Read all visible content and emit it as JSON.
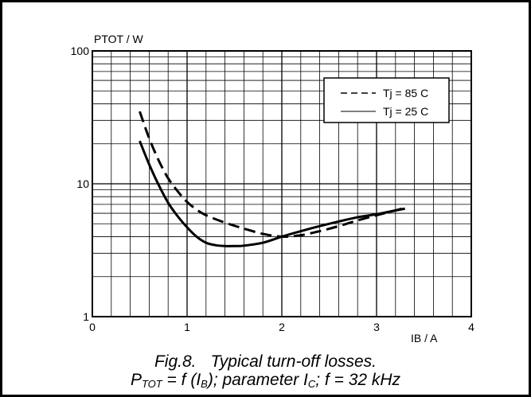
{
  "chart_data": {
    "type": "line",
    "xlabel": "IB / A",
    "ylabel": "PTOT / W",
    "xlim": [
      0,
      4
    ],
    "ylim": [
      1,
      100
    ],
    "yscale": "log",
    "x_ticks": [
      "0",
      "1",
      "2",
      "3",
      "4"
    ],
    "y_ticks": [
      "1",
      "10",
      "100"
    ],
    "grid": true,
    "legend_position": "top-right",
    "series": [
      {
        "name": "Tj = 85 C",
        "style": "dashed",
        "color": "#000000",
        "points": [
          [
            0.5,
            35
          ],
          [
            0.6,
            22
          ],
          [
            0.7,
            15
          ],
          [
            0.8,
            11
          ],
          [
            0.9,
            8.8
          ],
          [
            1.0,
            7.3
          ],
          [
            1.1,
            6.4
          ],
          [
            1.2,
            5.8
          ],
          [
            1.4,
            5.1
          ],
          [
            1.6,
            4.6
          ],
          [
            1.8,
            4.2
          ],
          [
            2.0,
            4.0
          ],
          [
            2.2,
            4.1
          ],
          [
            2.4,
            4.4
          ],
          [
            2.6,
            4.8
          ],
          [
            2.8,
            5.3
          ],
          [
            3.0,
            5.8
          ],
          [
            3.2,
            6.3
          ],
          [
            3.3,
            6.6
          ]
        ]
      },
      {
        "name": "Tj = 25 C",
        "style": "solid",
        "color": "#000000",
        "points": [
          [
            0.5,
            21
          ],
          [
            0.6,
            14
          ],
          [
            0.7,
            9.8
          ],
          [
            0.8,
            7.2
          ],
          [
            0.9,
            5.7
          ],
          [
            1.0,
            4.7
          ],
          [
            1.1,
            4.0
          ],
          [
            1.2,
            3.6
          ],
          [
            1.3,
            3.45
          ],
          [
            1.4,
            3.4
          ],
          [
            1.5,
            3.4
          ],
          [
            1.6,
            3.42
          ],
          [
            1.8,
            3.6
          ],
          [
            2.0,
            4.0
          ],
          [
            2.2,
            4.4
          ],
          [
            2.4,
            4.8
          ],
          [
            2.6,
            5.2
          ],
          [
            2.8,
            5.6
          ],
          [
            3.0,
            5.9
          ],
          [
            3.2,
            6.3
          ],
          [
            3.3,
            6.5
          ]
        ]
      }
    ]
  },
  "caption": {
    "fig_number": "Fig.8.",
    "fig_title": "Typical turn-off losses.",
    "line2_p": "P",
    "line2_p_sub": "TOT",
    "line2_eq": " = f (I",
    "line2_ib_sub": "B",
    "line2_param": "); parameter I",
    "line2_ic_sub": "C",
    "line2_freq": "; f = 32 kHz"
  }
}
